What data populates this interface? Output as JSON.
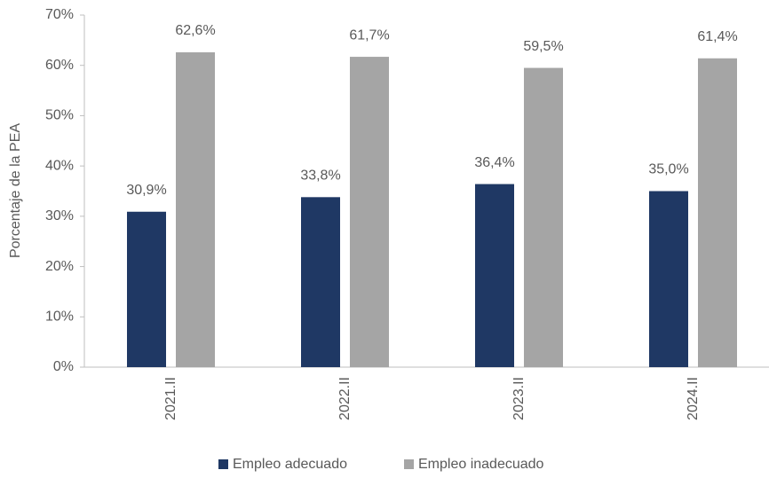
{
  "chart_data": {
    "type": "bar",
    "y_label": "Porcentaje de la PEA",
    "categories": [
      "2021.II",
      "2022.II",
      "2023.II",
      "2024.II"
    ],
    "series": [
      {
        "name": "Empleo adecuado",
        "color": "#1f3864",
        "values": [
          30.9,
          33.8,
          36.4,
          35.0
        ],
        "value_labels": [
          "30,9%",
          "33,8%",
          "36,4%",
          "35,0%"
        ]
      },
      {
        "name": "Empleo inadecuado",
        "color": "#a5a5a5",
        "values": [
          62.6,
          61.7,
          59.5,
          61.4
        ],
        "value_labels": [
          "62,6%",
          "61,7%",
          "59,5%",
          "61,4%"
        ]
      }
    ],
    "ylim": [
      0,
      70
    ],
    "yticks": [
      {
        "value": 0,
        "label": "0%"
      },
      {
        "value": 10,
        "label": "10%"
      },
      {
        "value": 20,
        "label": "20%"
      },
      {
        "value": 30,
        "label": "30%"
      },
      {
        "value": 40,
        "label": "40%"
      },
      {
        "value": 50,
        "label": "50%"
      },
      {
        "value": 60,
        "label": "60%"
      },
      {
        "value": 70,
        "label": "70%"
      }
    ],
    "legend": "bottom"
  }
}
